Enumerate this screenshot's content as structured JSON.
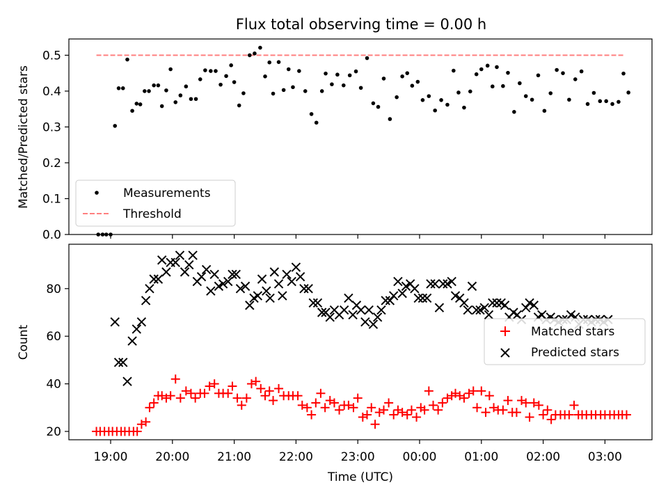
{
  "chart_data": [
    {
      "type": "scatter",
      "title": "Flux total observing time = 0.00 h",
      "ylabel": "Matched/Predicted stars",
      "xlabel": "",
      "ylim": [
        0,
        0.55
      ],
      "yticks": [
        "0.0",
        "0.1",
        "0.2",
        "0.3",
        "0.4",
        "0.5"
      ],
      "grid": false,
      "legend_position": "lower-left",
      "series": [
        {
          "name": "Measurements",
          "style": "dot",
          "color": "#000000",
          "x": [
            18.8,
            18.87,
            18.93,
            19.0,
            19.07,
            19.13,
            19.2,
            19.27,
            19.35,
            19.42,
            19.48,
            19.55,
            19.62,
            19.7,
            19.77,
            19.83,
            19.9,
            19.97,
            20.05,
            20.13,
            20.22,
            20.3,
            20.38,
            20.45,
            20.53,
            20.62,
            20.7,
            20.78,
            20.87,
            20.95,
            21.0,
            21.08,
            21.15,
            21.25,
            21.33,
            21.42,
            21.5,
            21.57,
            21.63,
            21.72,
            21.8,
            21.88,
            21.95,
            22.05,
            22.15,
            22.25,
            22.33,
            22.42,
            22.48,
            22.58,
            22.67,
            22.77,
            22.87,
            22.97,
            23.05,
            23.15,
            23.25,
            23.33,
            23.42,
            23.52,
            23.63,
            23.72,
            23.8,
            23.88,
            23.97,
            24.05,
            24.15,
            24.25,
            24.35,
            24.45,
            24.55,
            24.63,
            24.72,
            24.82,
            24.92,
            25.0,
            25.1,
            25.18,
            25.25,
            25.35,
            25.43,
            25.53,
            25.62,
            25.72,
            25.82,
            25.92,
            26.02,
            26.12,
            26.22,
            26.32,
            26.42,
            26.52,
            26.62,
            26.72,
            26.82,
            26.92,
            27.02,
            27.12,
            27.22,
            27.3,
            27.38
          ],
          "y": [
            0,
            0,
            0,
            0,
            0.303,
            0.408,
            0.408,
            0.488,
            0.345,
            0.365,
            0.363,
            0.4,
            0.4,
            0.416,
            0.416,
            0.358,
            0.402,
            0.461,
            0.369,
            0.388,
            0.413,
            0.378,
            0.378,
            0.433,
            0.458,
            0.456,
            0.456,
            0.418,
            0.442,
            0.472,
            0.425,
            0.36,
            0.394,
            0.5,
            0.505,
            0.521,
            0.441,
            0.48,
            0.393,
            0.481,
            0.403,
            0.461,
            0.411,
            0.456,
            0.4,
            0.336,
            0.312,
            0.4,
            0.449,
            0.419,
            0.446,
            0.416,
            0.444,
            0.455,
            0.409,
            0.492,
            0.366,
            0.356,
            0.435,
            0.322,
            0.383,
            0.441,
            0.45,
            0.415,
            0.426,
            0.375,
            0.386,
            0.346,
            0.375,
            0.362,
            0.457,
            0.396,
            0.354,
            0.399,
            0.447,
            0.461,
            0.471,
            0.413,
            0.467,
            0.414,
            0.451,
            0.342,
            0.422,
            0.386,
            0.376,
            0.444,
            0.345,
            0.394,
            0.459,
            0.45,
            0.376,
            0.433,
            0.455,
            0.364,
            0.395,
            0.372,
            0.372,
            0.364,
            0.37,
            0.449,
            0.396
          ]
        },
        {
          "name": "Threshold",
          "style": "dashed-line",
          "color": "#ff7f7f",
          "x": [
            18.77,
            27.3
          ],
          "y": [
            0.5,
            0.5
          ]
        }
      ]
    },
    {
      "type": "scatter",
      "title": "",
      "xlabel": "Time (UTC)",
      "ylabel": "Count",
      "ylim": [
        16,
        96
      ],
      "yticks": [
        "20",
        "40",
        "60",
        "80"
      ],
      "xticks": [
        "19:00",
        "20:00",
        "21:00",
        "22:00",
        "23:00",
        "00:00",
        "01:00",
        "02:00",
        "03:00"
      ],
      "xtick_values": [
        19,
        20,
        21,
        22,
        23,
        24,
        25,
        26,
        27
      ],
      "grid": false,
      "legend_position": "right",
      "series": [
        {
          "name": "Matched stars",
          "style": "plus",
          "color": "#ff0000",
          "x": [
            18.77,
            18.83,
            18.9,
            18.97,
            19.03,
            19.1,
            19.17,
            19.23,
            19.3,
            19.37,
            19.43,
            19.5,
            19.57,
            19.63,
            19.7,
            19.77,
            19.83,
            19.9,
            19.97,
            20.05,
            20.13,
            20.22,
            20.3,
            20.37,
            20.45,
            20.52,
            20.6,
            20.68,
            20.75,
            20.82,
            20.9,
            20.97,
            21.05,
            21.12,
            21.2,
            21.28,
            21.35,
            21.43,
            21.5,
            21.57,
            21.63,
            21.72,
            21.8,
            21.88,
            21.95,
            22.03,
            22.1,
            22.18,
            22.25,
            22.32,
            22.4,
            22.47,
            22.55,
            22.62,
            22.7,
            22.78,
            22.85,
            22.93,
            23.0,
            23.08,
            23.15,
            23.22,
            23.28,
            23.35,
            23.42,
            23.5,
            23.58,
            23.65,
            23.72,
            23.8,
            23.87,
            23.95,
            24.02,
            24.08,
            24.15,
            24.22,
            24.3,
            24.37,
            24.45,
            24.52,
            24.58,
            24.65,
            24.72,
            24.8,
            24.87,
            24.93,
            25.0,
            25.07,
            25.13,
            25.2,
            25.27,
            25.35,
            25.43,
            25.5,
            25.57,
            25.65,
            25.72,
            25.78,
            25.85,
            25.93,
            26.0,
            26.07,
            26.13,
            26.2,
            26.28,
            26.35,
            26.42,
            26.5,
            26.57,
            26.63,
            26.7,
            26.78,
            26.85,
            26.93,
            27.0,
            27.08,
            27.15,
            27.22,
            27.28,
            27.35
          ],
          "y": [
            20,
            20,
            20,
            20,
            20,
            20,
            20,
            20,
            20,
            20,
            20,
            23,
            24,
            30,
            32,
            35,
            35,
            34,
            35,
            42,
            34,
            37,
            36,
            34,
            36,
            36,
            39,
            40,
            36,
            36,
            36,
            39,
            34,
            31,
            34,
            40,
            41,
            38,
            35,
            37,
            33,
            38,
            35,
            35,
            35,
            35,
            31,
            30,
            27,
            32,
            36,
            30,
            33,
            32,
            29,
            31,
            31,
            30,
            34,
            26,
            27,
            30,
            23,
            28,
            29,
            32,
            27,
            29,
            28,
            27,
            29,
            26,
            30,
            29,
            37,
            31,
            29,
            32,
            34,
            35,
            36,
            35,
            34,
            36,
            37,
            30,
            37,
            28,
            35,
            30,
            29,
            29,
            33,
            28,
            28,
            33,
            32,
            26,
            32,
            31,
            27,
            29,
            25,
            27,
            27,
            27,
            27,
            31,
            27,
            27,
            27,
            27,
            27,
            27,
            27,
            27,
            27,
            27,
            27,
            27
          ]
        },
        {
          "name": "Predicted stars",
          "style": "cross",
          "color": "#000000",
          "x": [
            19.07,
            19.13,
            19.2,
            19.27,
            19.35,
            19.42,
            19.5,
            19.57,
            19.63,
            19.7,
            19.77,
            19.83,
            19.9,
            19.97,
            20.05,
            20.12,
            20.2,
            20.27,
            20.33,
            20.4,
            20.47,
            20.55,
            20.62,
            20.68,
            20.75,
            20.82,
            20.9,
            20.97,
            21.03,
            21.1,
            21.18,
            21.25,
            21.32,
            21.38,
            21.45,
            21.52,
            21.58,
            21.65,
            21.72,
            21.78,
            21.85,
            21.93,
            22.0,
            22.07,
            22.13,
            22.2,
            22.28,
            22.35,
            22.42,
            22.48,
            22.55,
            22.62,
            22.7,
            22.78,
            22.85,
            22.92,
            22.98,
            23.05,
            23.12,
            23.18,
            23.25,
            23.32,
            23.38,
            23.45,
            23.52,
            23.58,
            23.65,
            23.72,
            23.78,
            23.85,
            23.92,
            23.98,
            24.05,
            24.12,
            24.18,
            24.25,
            24.32,
            24.38,
            24.45,
            24.52,
            24.58,
            24.65,
            24.72,
            24.78,
            24.85,
            24.92,
            24.98,
            25.05,
            25.12,
            25.18,
            25.25,
            25.32,
            25.38,
            25.45,
            25.52,
            25.58,
            25.65,
            25.72,
            25.78,
            25.85,
            25.92,
            25.98,
            26.05,
            26.12,
            26.18,
            26.25,
            26.32,
            26.38,
            26.45,
            26.52,
            26.58,
            26.65,
            26.72,
            26.78,
            26.85,
            26.92,
            26.98,
            27.05
          ],
          "y": [
            66,
            49,
            49,
            41,
            58,
            63,
            66,
            75,
            80,
            84,
            84,
            92,
            87,
            91,
            91,
            94,
            87,
            90,
            94,
            83,
            85,
            88,
            79,
            86,
            81,
            82,
            83,
            86,
            86,
            80,
            81,
            73,
            76,
            77,
            84,
            79,
            76,
            87,
            82,
            77,
            86,
            83,
            89,
            85,
            80,
            80,
            74,
            74,
            70,
            70,
            68,
            71,
            69,
            71,
            76,
            69,
            73,
            71,
            66,
            71,
            65,
            68,
            71,
            75,
            75,
            77,
            83,
            78,
            81,
            82,
            80,
            76,
            76,
            76,
            82,
            82,
            72,
            82,
            82,
            83,
            77,
            76,
            74,
            71,
            81,
            71,
            71,
            72,
            69,
            74,
            74,
            74,
            73,
            68,
            70,
            69,
            67,
            72,
            74,
            73,
            68,
            69,
            67,
            68,
            67,
            66,
            67,
            67,
            69,
            68,
            65,
            67,
            67,
            66,
            67,
            67,
            66,
            67
          ]
        }
      ]
    }
  ]
}
